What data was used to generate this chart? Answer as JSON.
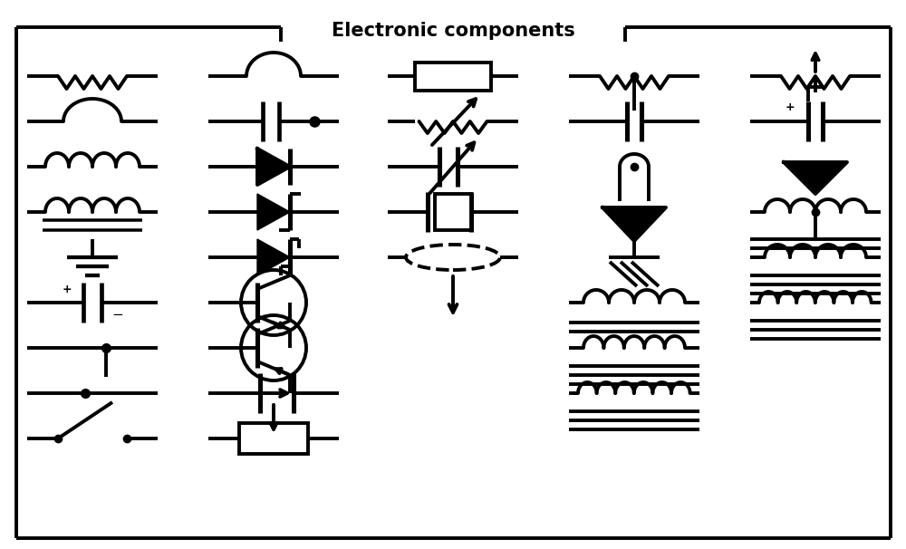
{
  "title": "Electronic components",
  "bg_color": "#ffffff",
  "line_color": "#000000",
  "lw": 2.8,
  "figsize": [
    10.0,
    6.06
  ],
  "dpi": 100
}
